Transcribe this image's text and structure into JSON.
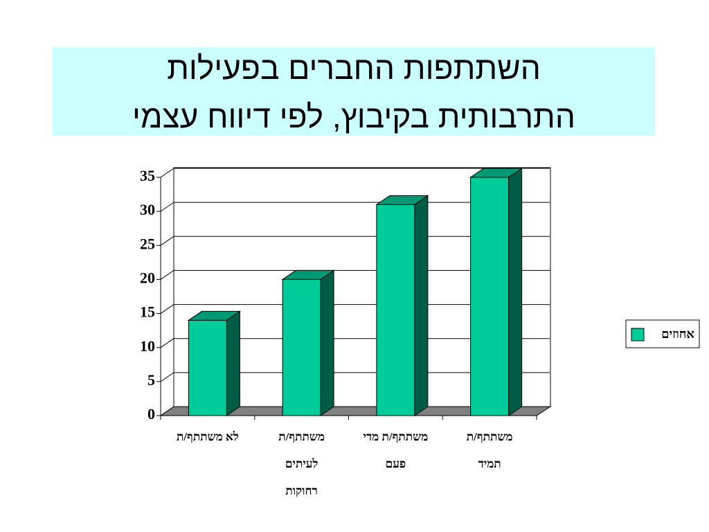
{
  "chart_data": {
    "type": "bar3d",
    "title": [
      "השתתפות החברים בפעילות",
      "התרבותית בקיבוץ, לפי דיווח עצמי"
    ],
    "categories": [
      [
        "לא משתתף/ת"
      ],
      [
        "משתתף/ת",
        "לעיתים",
        "רחוקות"
      ],
      [
        "משתתף/ת מדי",
        "פעם"
      ],
      [
        "משתתף/ת",
        "תמיד"
      ]
    ],
    "series": [
      {
        "name": "אחוזים",
        "color": "#00cc99",
        "values": [
          14,
          20,
          31,
          35
        ]
      }
    ],
    "ylim": [
      0,
      35
    ],
    "yticks": [
      0,
      5,
      10,
      15,
      20,
      25,
      30,
      35
    ],
    "grid": true,
    "legend": "right"
  }
}
